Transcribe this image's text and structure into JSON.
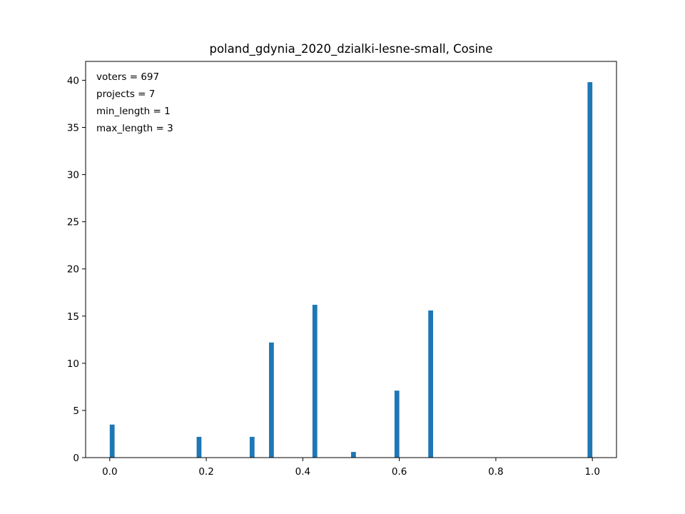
{
  "chart_data": {
    "type": "bar",
    "title": "poland_gdynia_2020_dzialki-lesne-small, Cosine",
    "xlabel": "",
    "ylabel": "",
    "xlim": [
      -0.05,
      1.05
    ],
    "ylim": [
      0,
      42
    ],
    "grid": false,
    "bar_color": "#1f77b4",
    "bar_width": 0.01,
    "x_ticks": [
      {
        "value": 0.0,
        "label": "0.0"
      },
      {
        "value": 0.2,
        "label": "0.2"
      },
      {
        "value": 0.4,
        "label": "0.4"
      },
      {
        "value": 0.6,
        "label": "0.6"
      },
      {
        "value": 0.8,
        "label": "0.8"
      },
      {
        "value": 1.0,
        "label": "1.0"
      }
    ],
    "y_ticks": [
      {
        "value": 0,
        "label": "0"
      },
      {
        "value": 5,
        "label": "5"
      },
      {
        "value": 10,
        "label": "10"
      },
      {
        "value": 15,
        "label": "15"
      },
      {
        "value": 20,
        "label": "20"
      },
      {
        "value": 25,
        "label": "25"
      },
      {
        "value": 30,
        "label": "30"
      },
      {
        "value": 35,
        "label": "35"
      },
      {
        "value": 40,
        "label": "40"
      }
    ],
    "bars": [
      {
        "x": 0.005,
        "value": 3.5
      },
      {
        "x": 0.185,
        "value": 2.2
      },
      {
        "x": 0.295,
        "value": 2.2
      },
      {
        "x": 0.335,
        "value": 12.2
      },
      {
        "x": 0.425,
        "value": 16.2
      },
      {
        "x": 0.505,
        "value": 0.6
      },
      {
        "x": 0.595,
        "value": 7.1
      },
      {
        "x": 0.665,
        "value": 15.6
      },
      {
        "x": 0.995,
        "value": 39.8
      }
    ],
    "annotations": [
      "voters = 697",
      "projects = 7",
      "min_length = 1",
      "max_length = 3"
    ]
  }
}
